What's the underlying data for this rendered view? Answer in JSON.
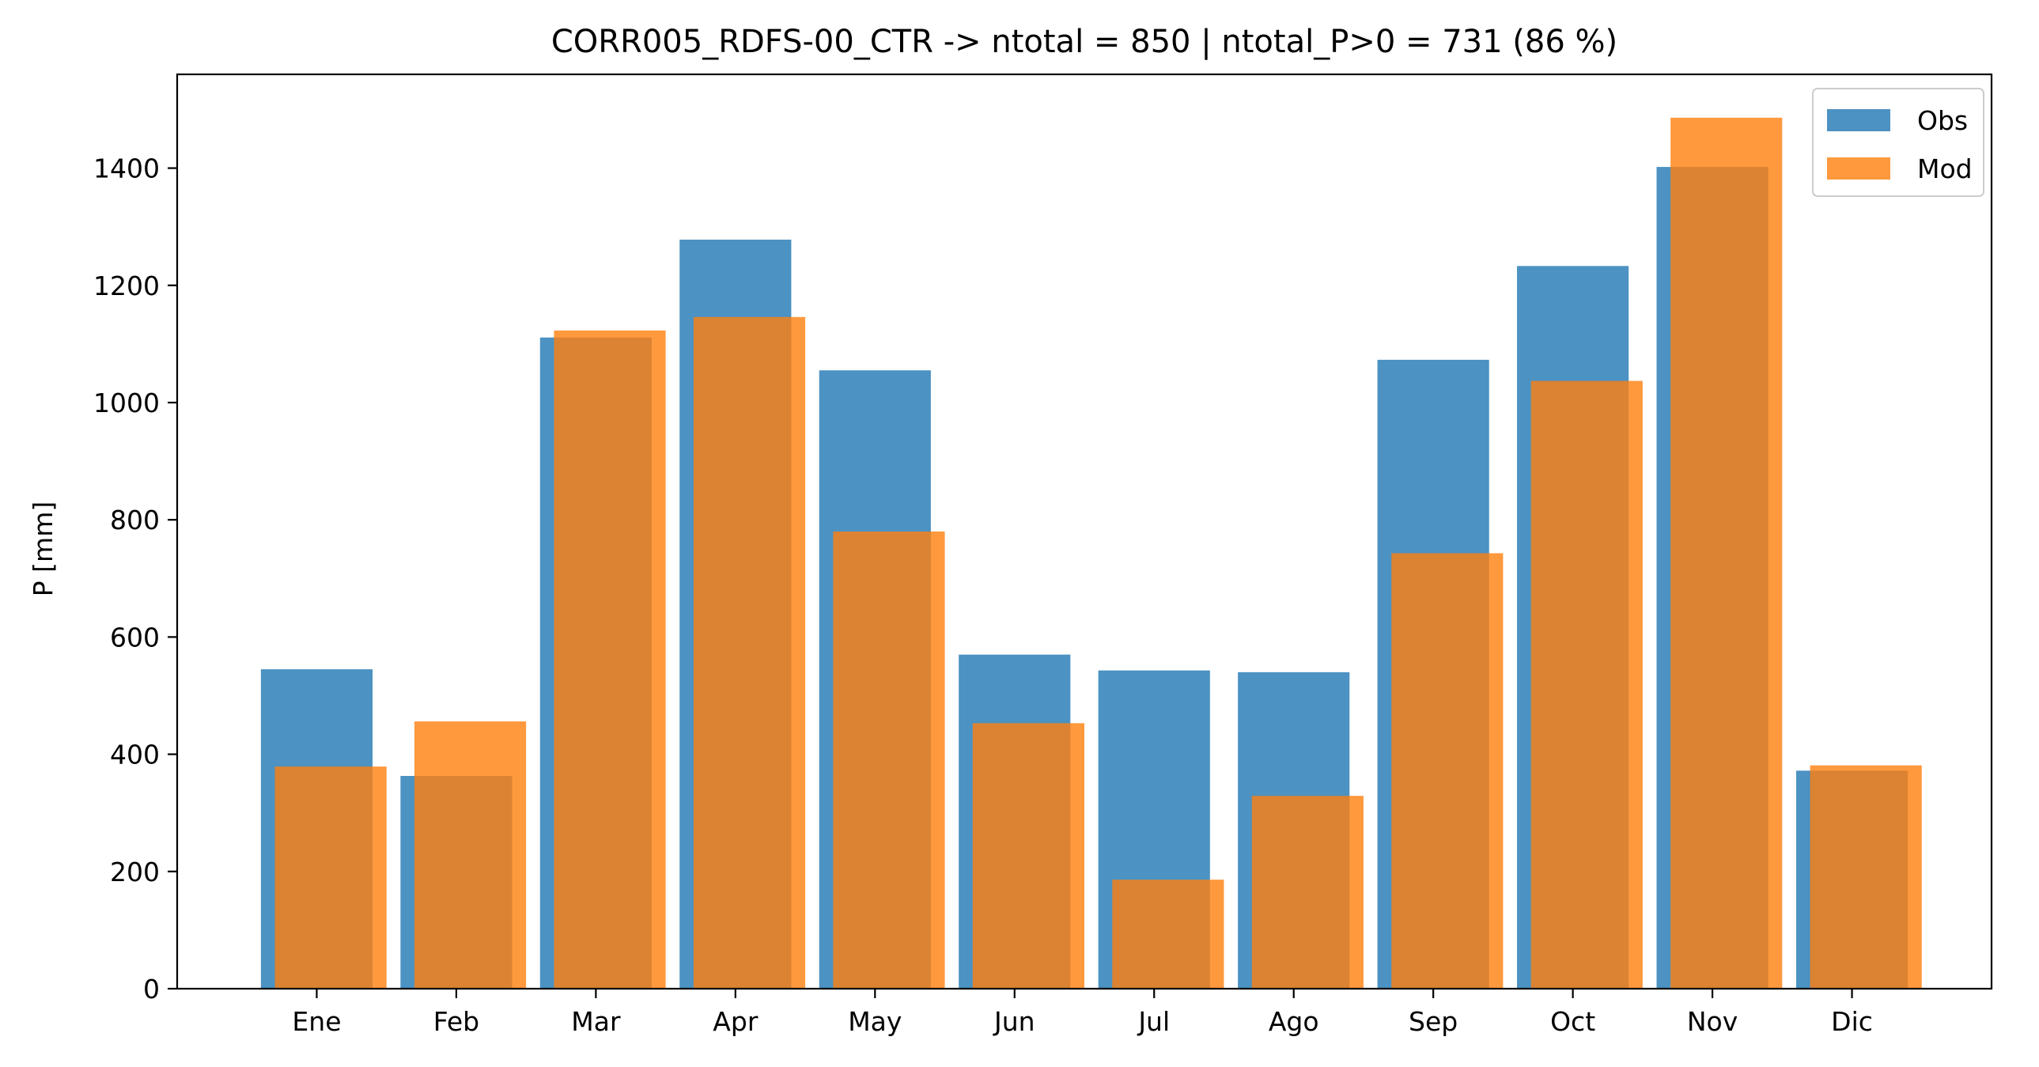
{
  "chart_data": {
    "type": "bar",
    "title": "CORR005_RDFS-00_CTR -> ntotal = 850 | ntotal_P>0 = 731 (86 %)",
    "xlabel": "",
    "ylabel": "P [mm]",
    "ylim": [
      0,
      1560
    ],
    "yticks": [
      0,
      200,
      400,
      600,
      800,
      1000,
      1200,
      1400
    ],
    "categories": [
      "Ene",
      "Feb",
      "Mar",
      "Apr",
      "May",
      "Jun",
      "Jul",
      "Ago",
      "Sep",
      "Oct",
      "Nov",
      "Dic"
    ],
    "series": [
      {
        "name": "Obs",
        "color": "#1f77b4",
        "opacity": 0.8,
        "values": [
          545,
          363,
          1111,
          1278,
          1055,
          570,
          543,
          540,
          1073,
          1233,
          1402,
          372
        ]
      },
      {
        "name": "Mod",
        "color": "#ff7f0e",
        "opacity": 0.8,
        "values": [
          379,
          456,
          1123,
          1146,
          780,
          453,
          186,
          329,
          743,
          1037,
          1486,
          381
        ]
      }
    ],
    "legend": "top-right",
    "grid": false
  }
}
